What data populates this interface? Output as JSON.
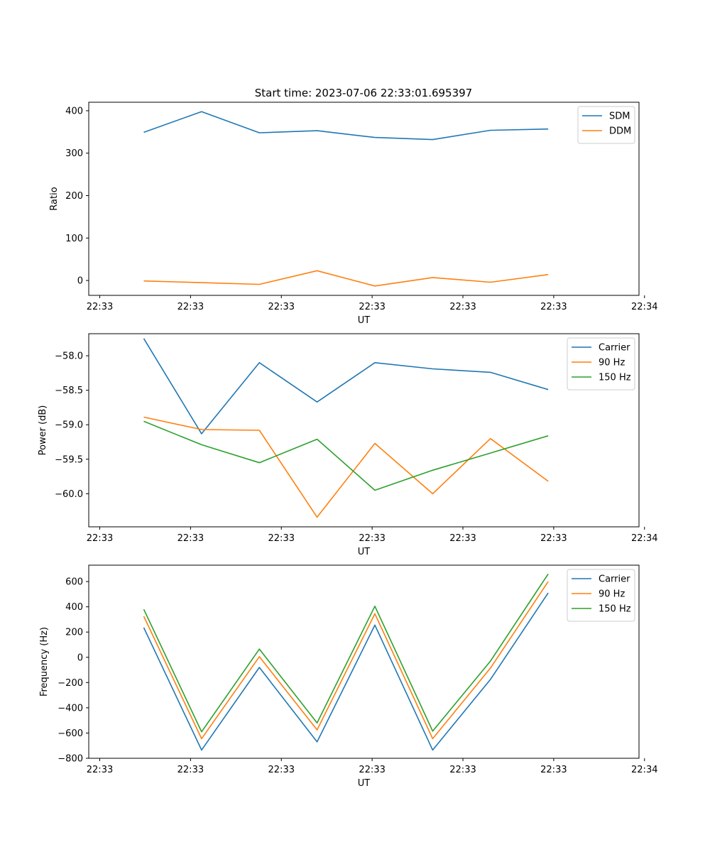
{
  "figure_title": "Start time: 2023-07-06 22:33:01.695397",
  "chart_data": [
    {
      "type": "line",
      "title": "Start time: 2023-07-06 22:33:01.695397",
      "xlabel": "UT",
      "ylabel": "Ratio",
      "xlim": [
        0,
        100
      ],
      "ylim": [
        -35,
        420
      ],
      "x": [
        10,
        20.5,
        31,
        41.5,
        52,
        62.5,
        73,
        83.5
      ],
      "x_ticks": [
        2,
        18.5,
        35,
        51.5,
        68,
        84.5,
        101
      ],
      "x_tick_labels": [
        "22:33",
        "22:33",
        "22:33",
        "22:33",
        "22:33",
        "22:33",
        "22:34"
      ],
      "y_ticks": [
        0,
        100,
        200,
        300,
        400
      ],
      "y_tick_labels": [
        "0",
        "100",
        "200",
        "300",
        "400"
      ],
      "legend_position": "top-right",
      "series": [
        {
          "name": "SDM",
          "color": "#1f77b4",
          "values": [
            349,
            398,
            348,
            353,
            337,
            332,
            354,
            357
          ]
        },
        {
          "name": "DDM",
          "color": "#ff7f0e",
          "values": [
            -1,
            -5,
            -9,
            23,
            -13,
            7,
            -4,
            14
          ]
        }
      ]
    },
    {
      "type": "line",
      "title": "",
      "xlabel": "UT",
      "ylabel": "Power (dB)",
      "xlim": [
        0,
        100
      ],
      "ylim": [
        -60.48,
        -57.68
      ],
      "x": [
        10,
        20.5,
        31,
        41.5,
        52,
        62.5,
        73,
        83.5
      ],
      "x_ticks": [
        2,
        18.5,
        35,
        51.5,
        68,
        84.5,
        101
      ],
      "x_tick_labels": [
        "22:33",
        "22:33",
        "22:33",
        "22:33",
        "22:33",
        "22:33",
        "22:34"
      ],
      "y_ticks": [
        -58.0,
        -58.5,
        -59.0,
        -59.5,
        -60.0
      ],
      "y_tick_labels": [
        "−58.0",
        "−58.5",
        "−59.0",
        "−59.5",
        "−60.0"
      ],
      "legend_position": "top-right",
      "series": [
        {
          "name": "Carrier",
          "color": "#1f77b4",
          "values": [
            -57.75,
            -59.13,
            -58.1,
            -58.67,
            -58.1,
            -58.19,
            -58.24,
            -58.49
          ]
        },
        {
          "name": "90 Hz",
          "color": "#ff7f0e",
          "values": [
            -58.89,
            -59.07,
            -59.08,
            -60.34,
            -59.27,
            -60.0,
            -59.2,
            -59.82
          ]
        },
        {
          "name": "150 Hz",
          "color": "#2ca02c",
          "values": [
            -58.95,
            -59.29,
            -59.55,
            -59.21,
            -59.95,
            -59.66,
            -59.41,
            -59.16
          ]
        }
      ]
    },
    {
      "type": "line",
      "title": "",
      "xlabel": "UT",
      "ylabel": "Frequency (Hz)",
      "xlim": [
        0,
        100
      ],
      "ylim": [
        -800,
        730
      ],
      "x": [
        10,
        20.5,
        31,
        41.5,
        52,
        62.5,
        73,
        83.5
      ],
      "x_ticks": [
        2,
        18.5,
        35,
        51.5,
        68,
        84.5,
        101
      ],
      "x_tick_labels": [
        "22:33",
        "22:33",
        "22:33",
        "22:33",
        "22:33",
        "22:33",
        "22:34"
      ],
      "y_ticks": [
        600,
        400,
        200,
        0,
        -200,
        -400,
        -600,
        -800
      ],
      "y_tick_labels": [
        "600",
        "400",
        "200",
        "0",
        "−200",
        "−400",
        "−600",
        "−800"
      ],
      "legend_position": "top-right",
      "series": [
        {
          "name": "Carrier",
          "color": "#1f77b4",
          "values": [
            235,
            -735,
            -80,
            -670,
            255,
            -735,
            -175,
            510
          ]
        },
        {
          "name": "90 Hz",
          "color": "#ff7f0e",
          "values": [
            325,
            -645,
            5,
            -575,
            345,
            -645,
            -85,
            600
          ]
        },
        {
          "name": "150 Hz",
          "color": "#2ca02c",
          "values": [
            380,
            -590,
            65,
            -520,
            405,
            -585,
            -30,
            660
          ]
        }
      ]
    }
  ]
}
